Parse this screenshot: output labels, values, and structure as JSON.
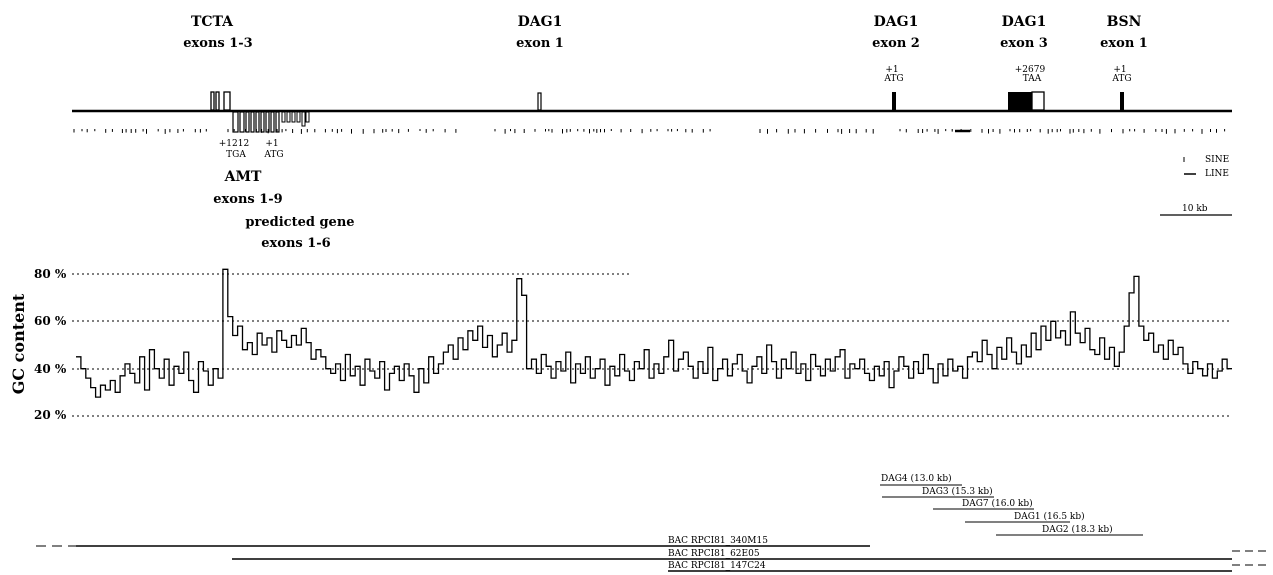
{
  "genes": {
    "tcta": {
      "name": "TCTA",
      "exons": "exons 1-3"
    },
    "dag1_e1": {
      "name": "DAG1",
      "exons": "exon 1"
    },
    "dag1_e2": {
      "name": "DAG1",
      "exons": "exon 2",
      "pos": "+1",
      "codon": "ATG"
    },
    "dag1_e3": {
      "name": "DAG1",
      "exons": "exon 3",
      "pos": "+2679",
      "codon": "TAA"
    },
    "bsn": {
      "name": "BSN",
      "exons": "exon 1",
      "pos": "+1",
      "codon": "ATG"
    },
    "amt": {
      "name": "AMT",
      "exons": "exons 1-9",
      "stop_pos": "+1212",
      "stop_codon": "TGA",
      "start_pos": "+1",
      "start_codon": "ATG"
    },
    "predicted": {
      "name": "predicted gene",
      "exons": "exons 1-6"
    }
  },
  "legend": {
    "sine": "SINE",
    "line": "LINE",
    "scale": "10 kb"
  },
  "chart_data": {
    "type": "line",
    "ylabel": "GC content",
    "yticks": [
      "20 %",
      "40 %",
      "60 %",
      "80 %"
    ],
    "ylim": [
      20,
      80
    ],
    "grid": "dotted at 20, 40, 60, 80",
    "values": [
      45,
      40,
      36,
      32,
      28,
      33,
      31,
      35,
      30,
      37,
      42,
      38,
      34,
      45,
      31,
      48,
      40,
      36,
      44,
      33,
      41,
      38,
      47,
      35,
      30,
      43,
      39,
      33,
      40,
      36,
      82,
      62,
      54,
      58,
      48,
      51,
      46,
      55,
      50,
      53,
      47,
      56,
      52,
      49,
      54,
      50,
      57,
      51,
      44,
      48,
      45,
      40,
      38,
      42,
      35,
      46,
      37,
      41,
      33,
      44,
      39,
      36,
      43,
      31,
      38,
      41,
      35,
      42,
      37,
      30,
      40,
      34,
      45,
      38,
      42,
      47,
      50,
      44,
      53,
      48,
      56,
      52,
      58,
      49,
      54,
      45,
      50,
      55,
      47,
      52,
      78,
      71,
      40,
      44,
      38,
      46,
      41,
      36,
      43,
      39,
      47,
      34,
      42,
      38,
      45,
      36,
      40,
      44,
      33,
      41,
      37,
      46,
      39,
      35,
      43,
      40,
      48,
      36,
      42,
      38,
      45,
      52,
      39,
      44,
      47,
      41,
      36,
      43,
      38,
      49,
      35,
      40,
      44,
      37,
      42,
      46,
      39,
      34,
      41,
      45,
      38,
      50,
      43,
      36,
      44,
      40,
      47,
      38,
      42,
      35,
      46,
      41,
      37,
      44,
      39,
      45,
      48,
      36,
      42,
      40,
      44,
      38,
      35,
      41,
      37,
      43,
      32,
      39,
      45,
      41,
      36,
      43,
      38,
      46,
      40,
      34,
      42,
      37,
      44,
      39,
      41,
      36,
      45,
      47,
      43,
      52,
      46,
      40,
      49,
      44,
      53,
      47,
      42,
      50,
      45,
      55,
      48,
      58,
      52,
      60,
      53,
      56,
      50,
      64,
      55,
      51,
      57,
      48,
      46,
      53,
      44,
      49,
      41,
      47,
      58,
      72,
      79,
      58,
      52,
      55,
      47,
      50,
      44,
      52,
      46,
      49,
      42,
      38,
      43,
      40,
      37,
      42,
      36,
      39,
      44,
      40
    ]
  },
  "clones": [
    {
      "label": "DAG4 (13.0 kb)"
    },
    {
      "label": "DAG3 (15.3 kb)"
    },
    {
      "label": "DAG7 (16.0 kb)"
    },
    {
      "label": "DAG1 (16.5 kb)"
    },
    {
      "label": "DAG2 (18.3 kb)"
    }
  ],
  "bacs": [
    {
      "label": "BAC RPCI81_340M15"
    },
    {
      "label": "BAC RPCI81_62E05"
    },
    {
      "label": "BAC RPCI81_147C24"
    }
  ]
}
